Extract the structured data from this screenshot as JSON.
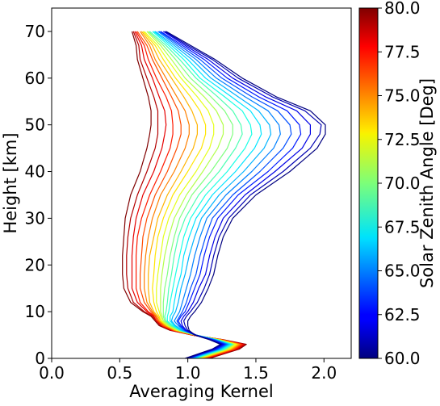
{
  "chart_data": {
    "type": "line",
    "title": "",
    "xlabel": "Averaging Kernel",
    "ylabel": "Height [km]",
    "xlim": [
      0.0,
      2.2
    ],
    "ylim": [
      0,
      75
    ],
    "x_ticks": [
      "0.0",
      "0.5",
      "1.0",
      "1.5",
      "2.0"
    ],
    "y_ticks": [
      "0",
      "10",
      "20",
      "30",
      "40",
      "50",
      "60",
      "70"
    ],
    "grid": false,
    "legend": "none",
    "colorbar": {
      "label": "Solar Zenith Angle [Deg]",
      "range": [
        60.0,
        80.0
      ],
      "ticks": [
        "60.0",
        "62.5",
        "65.0",
        "67.5",
        "70.0",
        "72.5",
        "75.0",
        "77.5",
        "80.0"
      ],
      "colormap": "jet"
    },
    "height_levels_km": [
      0,
      1,
      2,
      3,
      4,
      5,
      6,
      7,
      8,
      9,
      10,
      12,
      15,
      18,
      22,
      26,
      30,
      35,
      40,
      45,
      48,
      50,
      53,
      56,
      60,
      64,
      67,
      70
    ],
    "series": [
      {
        "sza": 60,
        "x": [
          0.98,
          1.08,
          1.18,
          1.24,
          1.16,
          1.05,
          1.01,
          1.0,
          1.0,
          1.02,
          1.05,
          1.1,
          1.15,
          1.19,
          1.22,
          1.26,
          1.33,
          1.5,
          1.75,
          1.95,
          2.01,
          2.01,
          1.9,
          1.65,
          1.4,
          1.2,
          1.02,
          0.84
        ]
      },
      {
        "sza": 61,
        "x": [
          0.99,
          1.09,
          1.19,
          1.25,
          1.17,
          1.06,
          1.0,
          0.98,
          0.97,
          0.99,
          1.02,
          1.07,
          1.12,
          1.16,
          1.19,
          1.23,
          1.3,
          1.46,
          1.7,
          1.9,
          1.97,
          1.98,
          1.86,
          1.62,
          1.37,
          1.18,
          1.0,
          0.83
        ]
      },
      {
        "sza": 62,
        "x": [
          1.0,
          1.1,
          1.2,
          1.26,
          1.17,
          1.05,
          0.99,
          0.96,
          0.95,
          0.97,
          1.0,
          1.04,
          1.08,
          1.13,
          1.16,
          1.2,
          1.26,
          1.42,
          1.64,
          1.84,
          1.9,
          1.9,
          1.8,
          1.57,
          1.33,
          1.15,
          0.98,
          0.82
        ]
      },
      {
        "sza": 63,
        "x": [
          1.0,
          1.1,
          1.21,
          1.27,
          1.18,
          1.05,
          0.98,
          0.95,
          0.93,
          0.95,
          0.98,
          1.01,
          1.05,
          1.09,
          1.12,
          1.16,
          1.22,
          1.37,
          1.59,
          1.77,
          1.83,
          1.82,
          1.73,
          1.52,
          1.29,
          1.12,
          0.96,
          0.8
        ]
      },
      {
        "sza": 64,
        "x": [
          1.01,
          1.11,
          1.22,
          1.28,
          1.19,
          1.06,
          0.98,
          0.94,
          0.92,
          0.94,
          0.96,
          0.99,
          1.02,
          1.06,
          1.09,
          1.13,
          1.18,
          1.33,
          1.53,
          1.7,
          1.76,
          1.75,
          1.66,
          1.47,
          1.25,
          1.09,
          0.94,
          0.79
        ]
      },
      {
        "sza": 65,
        "x": [
          1.02,
          1.12,
          1.23,
          1.29,
          1.2,
          1.06,
          0.97,
          0.93,
          0.9,
          0.92,
          0.94,
          0.96,
          0.99,
          1.02,
          1.05,
          1.09,
          1.14,
          1.28,
          1.47,
          1.63,
          1.68,
          1.67,
          1.59,
          1.42,
          1.21,
          1.06,
          0.92,
          0.78
        ]
      },
      {
        "sza": 66,
        "x": [
          1.03,
          1.13,
          1.24,
          1.3,
          1.2,
          1.06,
          0.96,
          0.91,
          0.88,
          0.89,
          0.91,
          0.93,
          0.95,
          0.98,
          1.01,
          1.05,
          1.1,
          1.23,
          1.41,
          1.56,
          1.61,
          1.6,
          1.52,
          1.37,
          1.17,
          1.03,
          0.9,
          0.76
        ]
      },
      {
        "sza": 67,
        "x": [
          1.04,
          1.14,
          1.25,
          1.31,
          1.21,
          1.06,
          0.95,
          0.9,
          0.87,
          0.87,
          0.89,
          0.9,
          0.92,
          0.95,
          0.97,
          1.01,
          1.06,
          1.18,
          1.35,
          1.49,
          1.54,
          1.53,
          1.46,
          1.32,
          1.13,
          1.0,
          0.88,
          0.75
        ]
      },
      {
        "sza": 68,
        "x": [
          1.05,
          1.15,
          1.26,
          1.32,
          1.21,
          1.06,
          0.95,
          0.89,
          0.85,
          0.85,
          0.86,
          0.87,
          0.89,
          0.91,
          0.94,
          0.97,
          1.02,
          1.13,
          1.29,
          1.42,
          1.47,
          1.46,
          1.4,
          1.27,
          1.09,
          0.97,
          0.86,
          0.74
        ]
      },
      {
        "sza": 69,
        "x": [
          1.05,
          1.16,
          1.27,
          1.33,
          1.22,
          1.06,
          0.94,
          0.88,
          0.84,
          0.83,
          0.84,
          0.85,
          0.86,
          0.88,
          0.9,
          0.93,
          0.98,
          1.08,
          1.23,
          1.35,
          1.4,
          1.39,
          1.33,
          1.22,
          1.06,
          0.94,
          0.84,
          0.72
        ]
      },
      {
        "sza": 70,
        "x": [
          1.06,
          1.17,
          1.28,
          1.33,
          1.22,
          1.06,
          0.94,
          0.87,
          0.83,
          0.82,
          0.82,
          0.82,
          0.83,
          0.85,
          0.87,
          0.9,
          0.94,
          1.03,
          1.17,
          1.29,
          1.33,
          1.33,
          1.27,
          1.17,
          1.02,
          0.91,
          0.82,
          0.71
        ]
      },
      {
        "sza": 71,
        "x": [
          1.07,
          1.18,
          1.29,
          1.34,
          1.22,
          1.05,
          0.93,
          0.86,
          0.82,
          0.81,
          0.8,
          0.8,
          0.8,
          0.81,
          0.83,
          0.86,
          0.9,
          0.99,
          1.11,
          1.22,
          1.26,
          1.26,
          1.21,
          1.12,
          0.98,
          0.88,
          0.8,
          0.7
        ]
      },
      {
        "sza": 72,
        "x": [
          1.08,
          1.19,
          1.3,
          1.35,
          1.23,
          1.05,
          0.92,
          0.85,
          0.81,
          0.8,
          0.79,
          0.77,
          0.77,
          0.78,
          0.8,
          0.82,
          0.86,
          0.94,
          1.06,
          1.16,
          1.19,
          1.19,
          1.15,
          1.07,
          0.95,
          0.85,
          0.78,
          0.68
        ]
      },
      {
        "sza": 73,
        "x": [
          1.09,
          1.2,
          1.31,
          1.36,
          1.23,
          1.05,
          0.92,
          0.85,
          0.8,
          0.79,
          0.77,
          0.75,
          0.74,
          0.75,
          0.76,
          0.78,
          0.82,
          0.89,
          1.0,
          1.1,
          1.13,
          1.13,
          1.09,
          1.02,
          0.91,
          0.82,
          0.76,
          0.67
        ]
      },
      {
        "sza": 74,
        "x": [
          1.1,
          1.21,
          1.32,
          1.37,
          1.24,
          1.05,
          0.91,
          0.84,
          0.8,
          0.78,
          0.75,
          0.72,
          0.71,
          0.71,
          0.72,
          0.75,
          0.78,
          0.85,
          0.95,
          1.04,
          1.07,
          1.07,
          1.03,
          0.97,
          0.88,
          0.79,
          0.74,
          0.66
        ]
      },
      {
        "sza": 75,
        "x": [
          1.11,
          1.22,
          1.33,
          1.38,
          1.24,
          1.04,
          0.9,
          0.83,
          0.79,
          0.77,
          0.74,
          0.7,
          0.68,
          0.68,
          0.69,
          0.71,
          0.74,
          0.8,
          0.9,
          0.98,
          1.01,
          1.01,
          0.98,
          0.92,
          0.84,
          0.76,
          0.72,
          0.65
        ]
      },
      {
        "sza": 76,
        "x": [
          1.12,
          1.23,
          1.34,
          1.39,
          1.25,
          1.04,
          0.9,
          0.82,
          0.78,
          0.76,
          0.73,
          0.68,
          0.65,
          0.65,
          0.66,
          0.67,
          0.7,
          0.76,
          0.85,
          0.92,
          0.95,
          0.95,
          0.93,
          0.88,
          0.81,
          0.74,
          0.7,
          0.63
        ]
      },
      {
        "sza": 77,
        "x": [
          1.13,
          1.24,
          1.35,
          1.4,
          1.25,
          1.04,
          0.89,
          0.81,
          0.78,
          0.76,
          0.71,
          0.65,
          0.62,
          0.62,
          0.62,
          0.63,
          0.66,
          0.72,
          0.8,
          0.87,
          0.89,
          0.89,
          0.88,
          0.84,
          0.77,
          0.71,
          0.68,
          0.62
        ]
      },
      {
        "sza": 78,
        "x": [
          1.14,
          1.25,
          1.36,
          1.41,
          1.25,
          1.03,
          0.88,
          0.81,
          0.77,
          0.75,
          0.7,
          0.63,
          0.59,
          0.59,
          0.59,
          0.6,
          0.62,
          0.67,
          0.75,
          0.81,
          0.83,
          0.84,
          0.83,
          0.79,
          0.74,
          0.68,
          0.66,
          0.61
        ]
      },
      {
        "sza": 79,
        "x": [
          1.15,
          1.26,
          1.37,
          1.42,
          1.26,
          1.03,
          0.88,
          0.8,
          0.77,
          0.74,
          0.68,
          0.6,
          0.56,
          0.55,
          0.55,
          0.56,
          0.58,
          0.63,
          0.7,
          0.76,
          0.78,
          0.78,
          0.78,
          0.75,
          0.7,
          0.65,
          0.64,
          0.6
        ]
      },
      {
        "sza": 80,
        "x": [
          1.16,
          1.27,
          1.38,
          1.43,
          1.26,
          1.03,
          0.87,
          0.79,
          0.76,
          0.73,
          0.67,
          0.58,
          0.53,
          0.52,
          0.52,
          0.53,
          0.54,
          0.58,
          0.65,
          0.7,
          0.72,
          0.73,
          0.73,
          0.71,
          0.67,
          0.63,
          0.62,
          0.59
        ]
      }
    ]
  }
}
